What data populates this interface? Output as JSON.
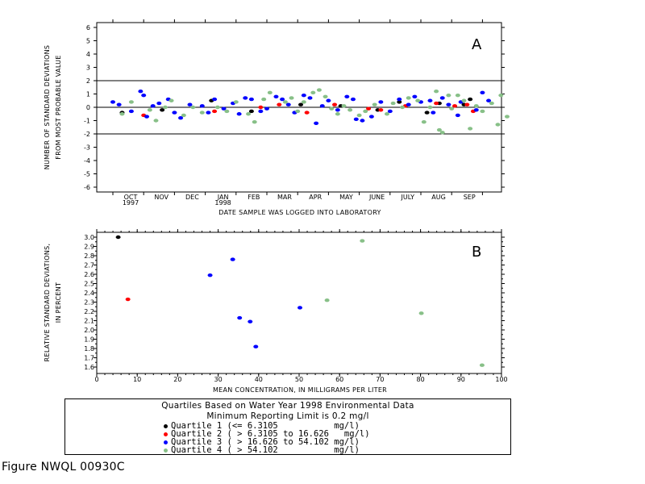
{
  "colors": {
    "q1": "#000000",
    "q2": "#ff0000",
    "q3": "#0000ff",
    "q4": "#88c088"
  },
  "chart_data": [
    {
      "type": "scatter",
      "panel": "A",
      "xlabel": "DATE SAMPLE WAS LOGGED INTO LABORATORY",
      "ylabel_line1": "NUMBER OF STANDARD DEVIATIONS",
      "ylabel_line2": "FROM MOST PROBABLE VALUE",
      "ylim": [
        -6,
        6
      ],
      "yticks": [
        "6",
        "5",
        "4",
        "3",
        "2",
        "1",
        "0",
        "-1",
        "-2",
        "-3",
        "-4",
        "-5",
        "-6"
      ],
      "month_labels": [
        "OCT",
        "NOV",
        "DEC",
        "JAN",
        "FEB",
        "MAR",
        "APR",
        "MAY",
        "JUNE",
        "JULY",
        "AUG",
        "SEP"
      ],
      "year_labels": [
        "1997",
        "1998"
      ],
      "reference_lines": [
        2,
        0,
        -2
      ],
      "x_unit": "months since start of October 1997",
      "series": [
        {
          "quartile": 1,
          "points": [
            [
              0.3,
              -0.4
            ],
            [
              1.6,
              -0.2
            ],
            [
              3.2,
              0.5
            ],
            [
              4.5,
              -0.3
            ],
            [
              6.1,
              0.2
            ],
            [
              7.4,
              0.1
            ],
            [
              8.6,
              -0.2
            ],
            [
              9.3,
              0.4
            ],
            [
              10.2,
              -0.4
            ],
            [
              10.6,
              0.3
            ],
            [
              11.4,
              0.2
            ],
            [
              11.6,
              0.6
            ]
          ]
        },
        {
          "quartile": 2,
          "points": [
            [
              1.0,
              -0.6
            ],
            [
              3.3,
              -0.3
            ],
            [
              4.8,
              0.0
            ],
            [
              5.4,
              0.2
            ],
            [
              6.3,
              -0.4
            ],
            [
              7.2,
              0.2
            ],
            [
              8.3,
              -0.1
            ],
            [
              8.7,
              -0.2
            ],
            [
              9.5,
              0.1
            ],
            [
              10.5,
              0.3
            ],
            [
              11.1,
              0.1
            ],
            [
              11.5,
              0.2
            ],
            [
              11.7,
              -0.3
            ]
          ]
        },
        {
          "quartile": 3,
          "points": [
            [
              0.0,
              0.4
            ],
            [
              0.2,
              0.2
            ],
            [
              0.6,
              -0.3
            ],
            [
              0.9,
              1.2
            ],
            [
              1.0,
              0.9
            ],
            [
              1.1,
              -0.7
            ],
            [
              1.3,
              0.1
            ],
            [
              1.5,
              0.3
            ],
            [
              1.8,
              0.6
            ],
            [
              2.0,
              -0.4
            ],
            [
              2.2,
              -0.8
            ],
            [
              2.5,
              0.2
            ],
            [
              2.9,
              0.1
            ],
            [
              3.1,
              -0.4
            ],
            [
              3.3,
              0.6
            ],
            [
              3.6,
              -0.1
            ],
            [
              3.9,
              0.3
            ],
            [
              4.1,
              -0.5
            ],
            [
              4.3,
              0.7
            ],
            [
              4.5,
              0.6
            ],
            [
              4.8,
              -0.3
            ],
            [
              5.0,
              -0.1
            ],
            [
              5.3,
              0.8
            ],
            [
              5.5,
              0.6
            ],
            [
              5.7,
              0.2
            ],
            [
              5.9,
              -0.4
            ],
            [
              6.2,
              0.9
            ],
            [
              6.4,
              0.7
            ],
            [
              6.6,
              -1.2
            ],
            [
              6.8,
              0.1
            ],
            [
              7.0,
              0.5
            ],
            [
              7.3,
              -0.2
            ],
            [
              7.6,
              0.8
            ],
            [
              7.8,
              0.6
            ],
            [
              7.9,
              -0.9
            ],
            [
              8.1,
              -1.0
            ],
            [
              8.4,
              -0.7
            ],
            [
              8.7,
              0.4
            ],
            [
              9.0,
              -0.3
            ],
            [
              9.3,
              0.6
            ],
            [
              9.6,
              0.2
            ],
            [
              9.8,
              0.8
            ],
            [
              10.0,
              0.4
            ],
            [
              10.3,
              0.5
            ],
            [
              10.4,
              -0.4
            ],
            [
              10.7,
              0.7
            ],
            [
              10.9,
              0.2
            ],
            [
              11.2,
              -0.6
            ],
            [
              11.3,
              0.4
            ],
            [
              11.8,
              -0.2
            ],
            [
              12.0,
              1.1
            ],
            [
              12.2,
              0.5
            ]
          ]
        },
        {
          "quartile": 4,
          "points": [
            [
              0.3,
              -0.5
            ],
            [
              0.6,
              0.4
            ],
            [
              1.2,
              -0.2
            ],
            [
              1.4,
              -1.0
            ],
            [
              1.7,
              0.0
            ],
            [
              1.9,
              0.5
            ],
            [
              2.3,
              -0.6
            ],
            [
              2.6,
              0.0
            ],
            [
              2.9,
              -0.4
            ],
            [
              3.4,
              0.0
            ],
            [
              3.7,
              -0.3
            ],
            [
              4.0,
              0.4
            ],
            [
              4.4,
              -0.5
            ],
            [
              4.6,
              -1.1
            ],
            [
              4.9,
              0.6
            ],
            [
              5.1,
              1.1
            ],
            [
              5.6,
              0.4
            ],
            [
              5.8,
              0.7
            ],
            [
              6.0,
              -0.3
            ],
            [
              6.2,
              0.4
            ],
            [
              6.5,
              1.1
            ],
            [
              6.7,
              1.3
            ],
            [
              6.9,
              0.8
            ],
            [
              7.1,
              -0.1
            ],
            [
              7.3,
              -0.5
            ],
            [
              7.5,
              0.1
            ],
            [
              7.7,
              -0.2
            ],
            [
              8.0,
              -0.6
            ],
            [
              8.2,
              -0.3
            ],
            [
              8.5,
              0.2
            ],
            [
              8.9,
              -0.5
            ],
            [
              9.1,
              0.3
            ],
            [
              9.4,
              0.0
            ],
            [
              9.6,
              0.7
            ],
            [
              9.9,
              0.5
            ],
            [
              10.1,
              -1.1
            ],
            [
              10.3,
              0.0
            ],
            [
              10.5,
              1.2
            ],
            [
              10.6,
              -1.7
            ],
            [
              10.7,
              -1.9
            ],
            [
              10.9,
              0.9
            ],
            [
              11.0,
              -0.1
            ],
            [
              11.2,
              0.9
            ],
            [
              11.4,
              0.5
            ],
            [
              11.6,
              -1.6
            ],
            [
              11.8,
              0.1
            ],
            [
              12.0,
              -0.3
            ],
            [
              12.3,
              0.3
            ],
            [
              12.5,
              -1.3
            ],
            [
              12.6,
              0.9
            ],
            [
              12.8,
              -0.7
            ]
          ]
        }
      ]
    },
    {
      "type": "scatter",
      "panel": "B",
      "xlabel": "MEAN CONCENTRATION, IN MILLIGRAMS PER LITER",
      "ylabel_line1": "RELATIVE STANDARD DEVIATIONS,",
      "ylabel_line2": "IN PERCENT",
      "xlim": [
        0,
        100
      ],
      "ylim": [
        1.55,
        3.02
      ],
      "xticks": [
        "0",
        "10",
        "20",
        "30",
        "40",
        "50",
        "60",
        "70",
        "80",
        "90",
        "100"
      ],
      "yticks": [
        "3.0",
        "2.9",
        "2.8",
        "2.7",
        "2.6",
        "2.5",
        "2.4",
        "2.3",
        "2.2",
        "2.1",
        "2.0",
        "1.9",
        "1.8",
        "1.7",
        "1.6"
      ],
      "points": [
        {
          "x": 5.3,
          "y": 3.0,
          "quartile": 1
        },
        {
          "x": 7.7,
          "y": 2.33,
          "quartile": 2
        },
        {
          "x": 28.0,
          "y": 2.59,
          "quartile": 3
        },
        {
          "x": 33.6,
          "y": 2.76,
          "quartile": 3
        },
        {
          "x": 35.3,
          "y": 2.13,
          "quartile": 3
        },
        {
          "x": 37.9,
          "y": 2.09,
          "quartile": 3
        },
        {
          "x": 39.3,
          "y": 1.82,
          "quartile": 3
        },
        {
          "x": 50.2,
          "y": 2.24,
          "quartile": 3
        },
        {
          "x": 56.9,
          "y": 2.32,
          "quartile": 4
        },
        {
          "x": 65.6,
          "y": 2.96,
          "quartile": 4
        },
        {
          "x": 80.2,
          "y": 2.18,
          "quartile": 4
        },
        {
          "x": 95.2,
          "y": 1.62,
          "quartile": 4
        }
      ]
    }
  ],
  "legend": {
    "title_line1": "Quartiles Based on Water Year 1998 Environmental Data",
    "title_line2": "Minimum Reporting Limit is 0.2 mg/l",
    "items": [
      {
        "label": "Quartile 1 (<= 6.3105           mg/l)",
        "color": "#000000"
      },
      {
        "label": "Quartile 2 ( > 6.3105 to 16.626   mg/l)",
        "color": "#ff0000"
      },
      {
        "label": "Quartile 3 ( > 16.626 to 54.102 mg/l)",
        "color": "#0000ff"
      },
      {
        "label": "Quartile 4 ( > 54.102           mg/l)",
        "color": "#88c088"
      }
    ]
  },
  "figure_id": "Figure NWQL 00930C"
}
